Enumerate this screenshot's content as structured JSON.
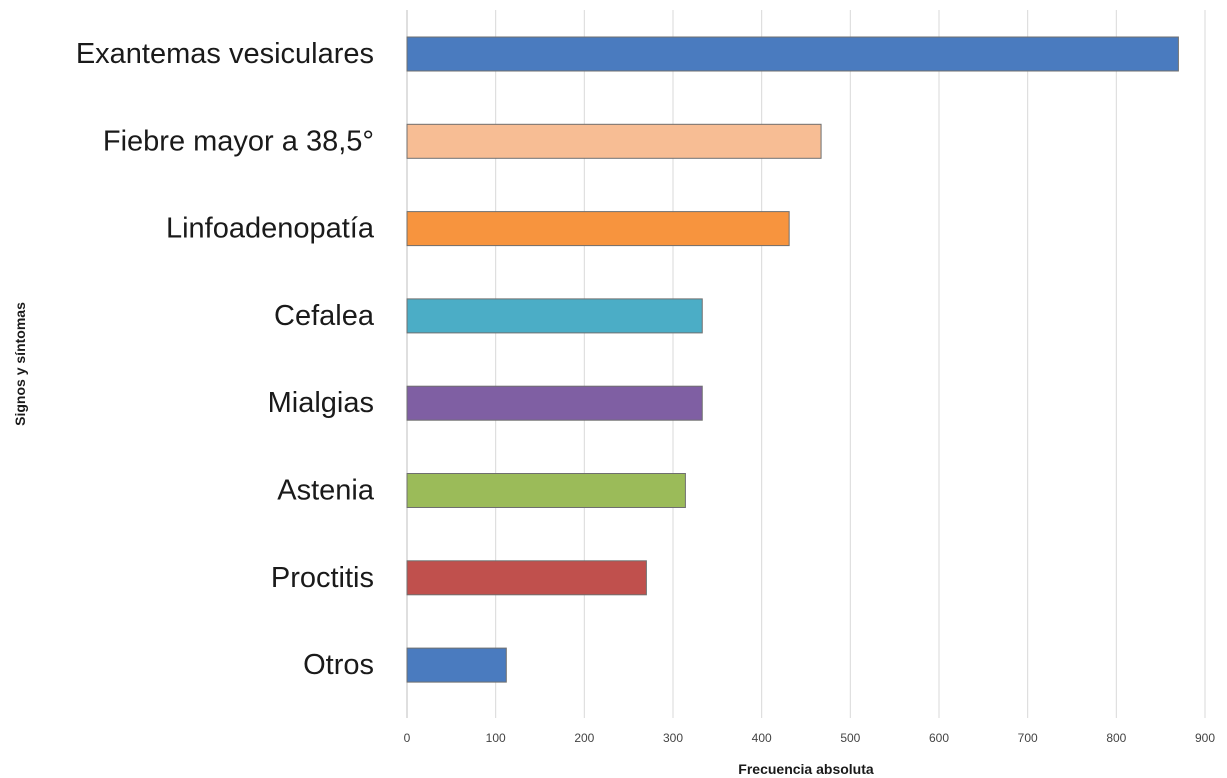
{
  "chart_data": {
    "type": "bar",
    "orientation": "horizontal",
    "title": "",
    "xlabel": "Frecuencia absoluta",
    "ylabel": "Signos y síntomas",
    "xlim": [
      0,
      900
    ],
    "xticks": [
      0,
      100,
      200,
      300,
      400,
      500,
      600,
      700,
      800,
      900
    ],
    "grid": "vertical",
    "legend": "none",
    "categories": [
      "Exantemas vesiculares",
      "Fiebre mayor a 38,5°",
      "Linfoadenopatía",
      "Cefalea",
      "Mialgias",
      "Astenia",
      "Proctitis",
      "Otros"
    ],
    "values": [
      870,
      467,
      431,
      333,
      333,
      314,
      270,
      112
    ],
    "colors": [
      "#4a7bbf",
      "#f7bd94",
      "#f7943e",
      "#4badc6",
      "#7f5fa3",
      "#9bbb59",
      "#c0504d",
      "#4a7bbf"
    ]
  }
}
